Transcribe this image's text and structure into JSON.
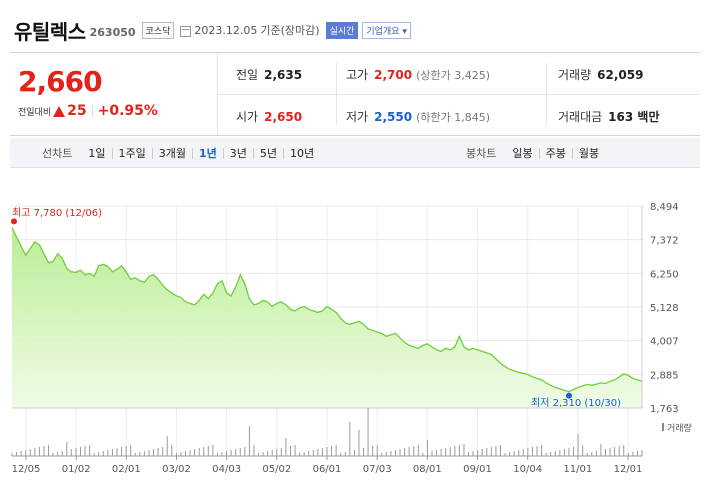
{
  "header": {
    "name": "유틸렉스",
    "code": "263050",
    "market": "코스닥",
    "date": "2023.12.05",
    "basis": "기준(장마감)",
    "realtime": "실시간",
    "company_info": "기업개요 ▾"
  },
  "quote": {
    "price": "2,660",
    "change_label": "전일대비",
    "change": "25",
    "change_pct": "+0.95%",
    "prev_close_label": "전일",
    "prev_close": "2,635",
    "high_label": "고가",
    "high": "2,700",
    "upper_limit": "(상한가 3,425)",
    "volume_label": "거래량",
    "volume": "62,059",
    "open_label": "시가",
    "open": "2,650",
    "low_label": "저가",
    "low": "2,550",
    "lower_limit": "(하한가 1,845)",
    "value_label": "거래대금",
    "value": "163 백만",
    "up_color": "#e2231a",
    "down_color": "#1a5fd5"
  },
  "periods": {
    "label": "선차트",
    "options": [
      "1일",
      "1주일",
      "3개월",
      "1년",
      "3년",
      "5년",
      "10년"
    ],
    "selected": "1년"
  },
  "candle": {
    "label": "봉차트",
    "options": [
      "일봉",
      "주봉",
      "월봉"
    ]
  },
  "chart_data": {
    "type": "area",
    "y_ticks": [
      "8,494",
      "7,372",
      "6,250",
      "5,128",
      "4,007",
      "2,885",
      "1,763"
    ],
    "ylim": [
      1763,
      8494
    ],
    "x_ticks": [
      "12/05",
      "01/02",
      "02/01",
      "03/02",
      "04/03",
      "05/02",
      "06/01",
      "07/03",
      "08/01",
      "09/01",
      "10/04",
      "11/01",
      "12/01"
    ],
    "max_label": "최고 7,780 (12/06)",
    "min_label": "최저 2,310 (10/30)",
    "volume_legend": "거래량",
    "line_color": "#6fcf3a",
    "series": [
      {
        "values": [
          7780,
          7450,
          7150,
          6850,
          7080,
          7300,
          7200,
          6900,
          6600,
          6650,
          6900,
          6750,
          6400,
          6300,
          6280,
          6350,
          6200,
          6250,
          6150,
          6500,
          6550,
          6480,
          6300,
          6380,
          6500,
          6300,
          6050,
          6100,
          6000,
          5950,
          6150,
          6200,
          6050,
          5850,
          5700,
          5600,
          5500,
          5450,
          5300,
          5250,
          5200,
          5350,
          5550,
          5400,
          5600,
          5900,
          6000,
          5600,
          5500,
          5800,
          6200,
          5900,
          5400,
          5200,
          5250,
          5350,
          5300,
          5150,
          5250,
          5300,
          5200,
          5050,
          5000,
          5100,
          5150,
          5050,
          5000,
          4950,
          5000,
          5150,
          5050,
          4950,
          4750,
          4600,
          4550,
          4600,
          4650,
          4550,
          4400,
          4350,
          4300,
          4250,
          4150,
          4200,
          4250,
          4100,
          3950,
          3850,
          3800,
          3750,
          3850,
          3900,
          3800,
          3700,
          3650,
          3750,
          3700,
          3800,
          4150,
          3800,
          3700,
          3750,
          3700,
          3650,
          3600,
          3550,
          3400,
          3250,
          3150,
          3050,
          3000,
          2950,
          2920,
          2880,
          2800,
          2750,
          2700,
          2600,
          2520,
          2450,
          2400,
          2350,
          2310,
          2380,
          2450,
          2500,
          2550,
          2520,
          2560,
          2600,
          2580,
          2650,
          2700,
          2800,
          2900,
          2850,
          2750,
          2700,
          2660
        ]
      }
    ]
  }
}
